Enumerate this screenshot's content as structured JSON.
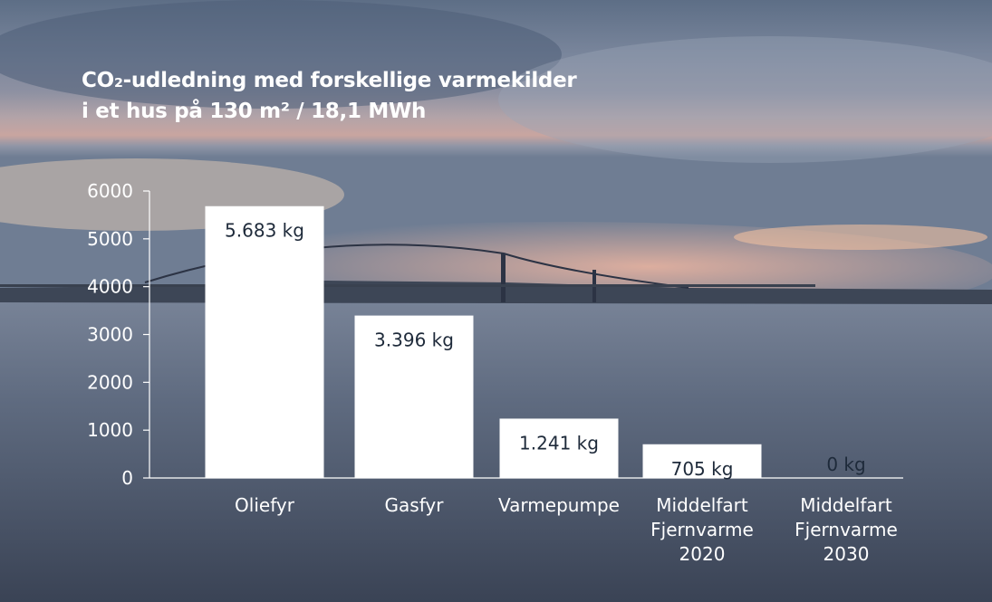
{
  "colors": {
    "bar": "#ffffff",
    "axis": "#ffffff",
    "text": "#ffffff",
    "value_text": "#1e2a3a"
  },
  "chart_data": {
    "type": "bar",
    "title_lines": [
      "CO₂-udledning med forskellige varmekilder",
      "i et hus på 130 m² / 18,1 MWh"
    ],
    "categories": [
      [
        "Oliefyr"
      ],
      [
        "Gasfyr"
      ],
      [
        "Varmepumpe"
      ],
      [
        "Middelfart",
        "Fjernvarme",
        "2020"
      ],
      [
        "Middelfart",
        "Fjernvarme",
        "2030"
      ]
    ],
    "values": [
      5683,
      3396,
      1241,
      705,
      0
    ],
    "value_labels": [
      "5.683 kg",
      "3.396 kg",
      "1.241 kg",
      "705 kg",
      "0 kg"
    ],
    "ylim": [
      0,
      6000
    ],
    "yticks": [
      0,
      1000,
      2000,
      3000,
      4000,
      5000,
      6000
    ],
    "grid": false,
    "legend": "none"
  }
}
